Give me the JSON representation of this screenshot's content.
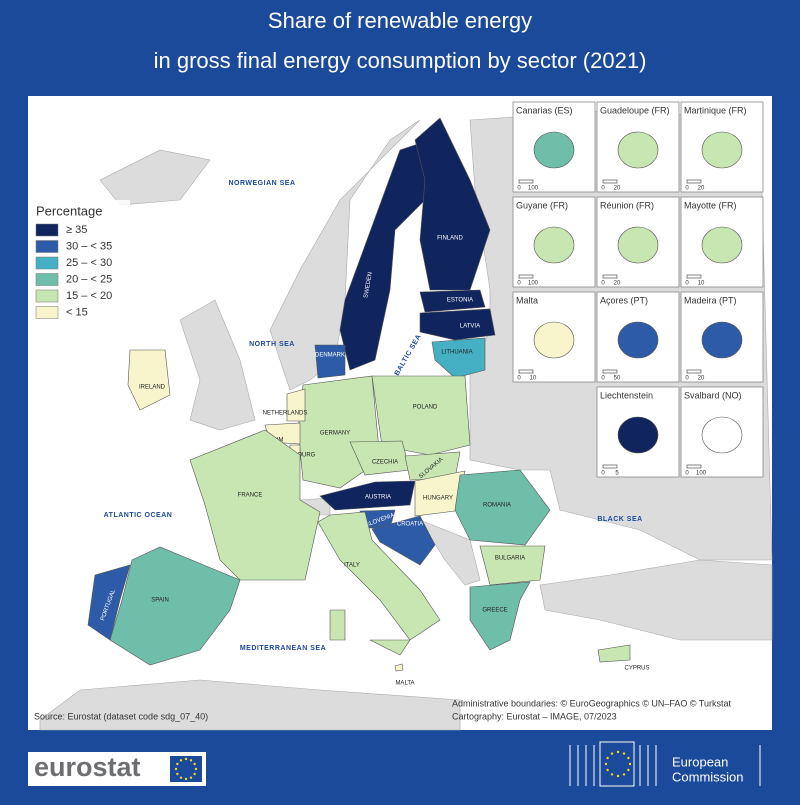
{
  "title": [
    "Share of renewable energy",
    "in gross final energy consumption by sector (2021)"
  ],
  "legend": {
    "title": "Percentage",
    "items": [
      {
        "label": "≥ 35",
        "color": "#10245e"
      },
      {
        "label": "30 – < 35",
        "color": "#2d5ba8"
      },
      {
        "label": "25 – < 30",
        "color": "#45b0c3"
      },
      {
        "label": "20 – < 25",
        "color": "#6fbeaa"
      },
      {
        "label": "15 – < 20",
        "color": "#c8e6b2"
      },
      {
        "label": "< 15",
        "color": "#f8f5cc"
      }
    ]
  },
  "seas": [
    "NORWEGIAN SEA",
    "NORTH SEA",
    "BALTIC SEA",
    "ATLANTIC OCEAN",
    "BLACK SEA",
    "MEDITERRANEAN SEA"
  ],
  "countries": [
    {
      "label": "SWEDEN",
      "color": "#10245e"
    },
    {
      "label": "FINLAND",
      "color": "#10245e"
    },
    {
      "label": "ESTONIA",
      "color": "#10245e"
    },
    {
      "label": "LATVIA",
      "color": "#10245e"
    },
    {
      "label": "LITHUANIA",
      "color": "#45b0c3"
    },
    {
      "label": "DENMARK",
      "color": "#2d5ba8"
    },
    {
      "label": "GERMANY",
      "color": "#c8e6b2"
    },
    {
      "label": "NETHERLANDS",
      "color": "#f8f5cc"
    },
    {
      "label": "BELGIUM",
      "color": "#f8f5cc"
    },
    {
      "label": "LUXEMBOURG",
      "color": "#f8f5cc"
    },
    {
      "label": "FRANCE",
      "color": "#c8e6b2"
    },
    {
      "label": "POLAND",
      "color": "#c8e6b2"
    },
    {
      "label": "CZECHIA",
      "color": "#c8e6b2"
    },
    {
      "label": "SLOVAKIA",
      "color": "#c8e6b2"
    },
    {
      "label": "AUSTRIA",
      "color": "#10245e"
    },
    {
      "label": "HUNGARY",
      "color": "#f8f5cc"
    },
    {
      "label": "SLOVENIA",
      "color": "#2d5ba8"
    },
    {
      "label": "CROATIA",
      "color": "#2d5ba8"
    },
    {
      "label": "ITALY",
      "color": "#c8e6b2"
    },
    {
      "label": "ROMANIA",
      "color": "#6fbeaa"
    },
    {
      "label": "BULGARIA",
      "color": "#c8e6b2"
    },
    {
      "label": "GREECE",
      "color": "#6fbeaa"
    },
    {
      "label": "SPAIN",
      "color": "#6fbeaa"
    },
    {
      "label": "PORTUGAL",
      "color": "#2d5ba8"
    },
    {
      "label": "IRELAND",
      "color": "#f8f5cc"
    },
    {
      "label": "CYPRUS",
      "color": "#c8e6b2"
    },
    {
      "label": "MALTA",
      "color": "#f8f5cc"
    }
  ],
  "insets": [
    {
      "name": "Canarias (ES)",
      "color": "#6fbeaa",
      "scale": [
        "0",
        "100"
      ]
    },
    {
      "name": "Guadeloupe (FR)",
      "color": "#c8e6b2",
      "scale": [
        "0",
        "20"
      ]
    },
    {
      "name": "Martinique (FR)",
      "color": "#c8e6b2",
      "scale": [
        "0",
        "20"
      ]
    },
    {
      "name": "Guyane (FR)",
      "color": "#c8e6b2",
      "scale": [
        "0",
        "100"
      ]
    },
    {
      "name": "Réunion (FR)",
      "color": "#c8e6b2",
      "scale": [
        "0",
        "20"
      ]
    },
    {
      "name": "Mayotte (FR)",
      "color": "#c8e6b2",
      "scale": [
        "0",
        "10"
      ]
    },
    {
      "name": "Malta",
      "color": "#f8f5cc",
      "scale": [
        "0",
        "10"
      ]
    },
    {
      "name": "Açores (PT)",
      "color": "#2d5ba8",
      "scale": [
        "0",
        "50"
      ]
    },
    {
      "name": "Madeira (PT)",
      "color": "#2d5ba8",
      "scale": [
        "0",
        "20"
      ]
    },
    {
      "name": "Liechtenstein",
      "color": "#10245e",
      "scale": [
        "0",
        "5"
      ]
    },
    {
      "name": "Svalbard (NO)",
      "color": "#ffffff",
      "scale": [
        "0",
        "100"
      ]
    }
  ],
  "notes": {
    "boundaries": "Administrative boundaries: © EuroGeographics © UN–FAO © Turkstat",
    "source": "Source: Eurostat (dataset code sdg_07_40)",
    "cartography": "Cartography: Eurostat – IMAGE, 07/2023"
  },
  "logos": {
    "eurostat": "eurostat",
    "commission": [
      "European",
      "Commission"
    ]
  }
}
